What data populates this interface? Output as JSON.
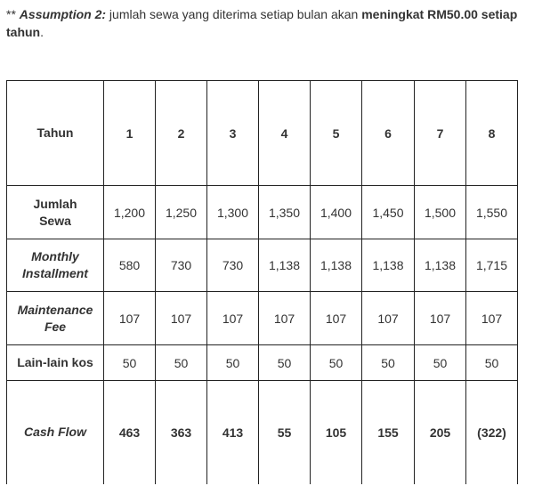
{
  "note": {
    "prefix": "** ",
    "label": "Assumption 2:",
    "text": " jumlah sewa yang diterima setiap bulan akan ",
    "bold1": "meningkat RM50.00 setiap tahun",
    "end": "."
  },
  "table": {
    "header_label": "Tahun",
    "years": [
      "1",
      "2",
      "3",
      "4",
      "5",
      "6",
      "7",
      "8"
    ],
    "rows": [
      {
        "label": "Jumlah Sewa",
        "values": [
          "1,200",
          "1,250",
          "1,300",
          "1,350",
          "1,400",
          "1,450",
          "1,500",
          "1,550"
        ]
      },
      {
        "label": "Monthly Installment",
        "values": [
          "580",
          "730",
          "730",
          "1,138",
          "1,138",
          "1,138",
          "1,138",
          "1,715"
        ]
      },
      {
        "label": "Maintenance Fee",
        "values": [
          "107",
          "107",
          "107",
          "107",
          "107",
          "107",
          "107",
          "107"
        ]
      },
      {
        "label": "Lain-lain kos",
        "values": [
          "50",
          "50",
          "50",
          "50",
          "50",
          "50",
          "50",
          "50"
        ]
      },
      {
        "label": "Cash Flow",
        "values": [
          "463",
          "363",
          "413",
          "55",
          "105",
          "155",
          "205",
          "(322)"
        ]
      }
    ]
  }
}
